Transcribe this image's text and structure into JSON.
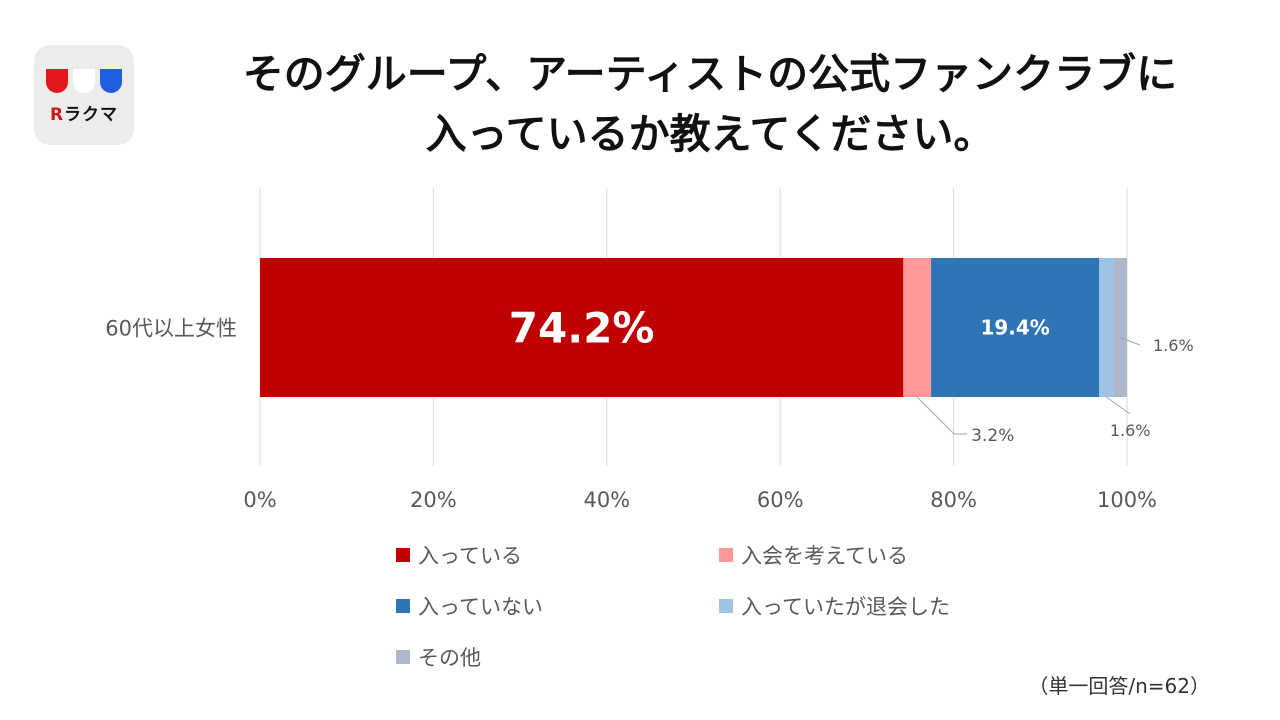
{
  "logo": {
    "brand_text": "ラクマ",
    "colors": [
      "#e4151b",
      "#ffffff",
      "#1d5fe0"
    ]
  },
  "title_line1": "そのグループ、アーティストの公式ファンクラブに",
  "title_line2": "入っているか教えてください。",
  "note": "（単一回答/n=62）",
  "chart_data": {
    "type": "bar",
    "orientation": "horizontal",
    "stacked": "percent",
    "categories": [
      "60代以上女性"
    ],
    "xlim": [
      0,
      100
    ],
    "x_ticks": [
      "0%",
      "20%",
      "40%",
      "60%",
      "80%",
      "100%"
    ],
    "grid": true,
    "legend_position": "bottom",
    "series": [
      {
        "name": "入っている",
        "values": [
          74.2
        ],
        "label": "74.2%",
        "color": "#c00000"
      },
      {
        "name": "入会を考えている",
        "values": [
          3.2
        ],
        "label": "3.2%",
        "color": "#ff9999"
      },
      {
        "name": "入っていない",
        "values": [
          19.4
        ],
        "label": "19.4%",
        "color": "#2e75b6"
      },
      {
        "name": "入っていたが退会した",
        "values": [
          1.6
        ],
        "label": "1.6%",
        "color": "#9dc3e6"
      },
      {
        "name": "その他",
        "values": [
          1.6
        ],
        "label": "1.6%",
        "color": "#adb9ca"
      }
    ]
  }
}
